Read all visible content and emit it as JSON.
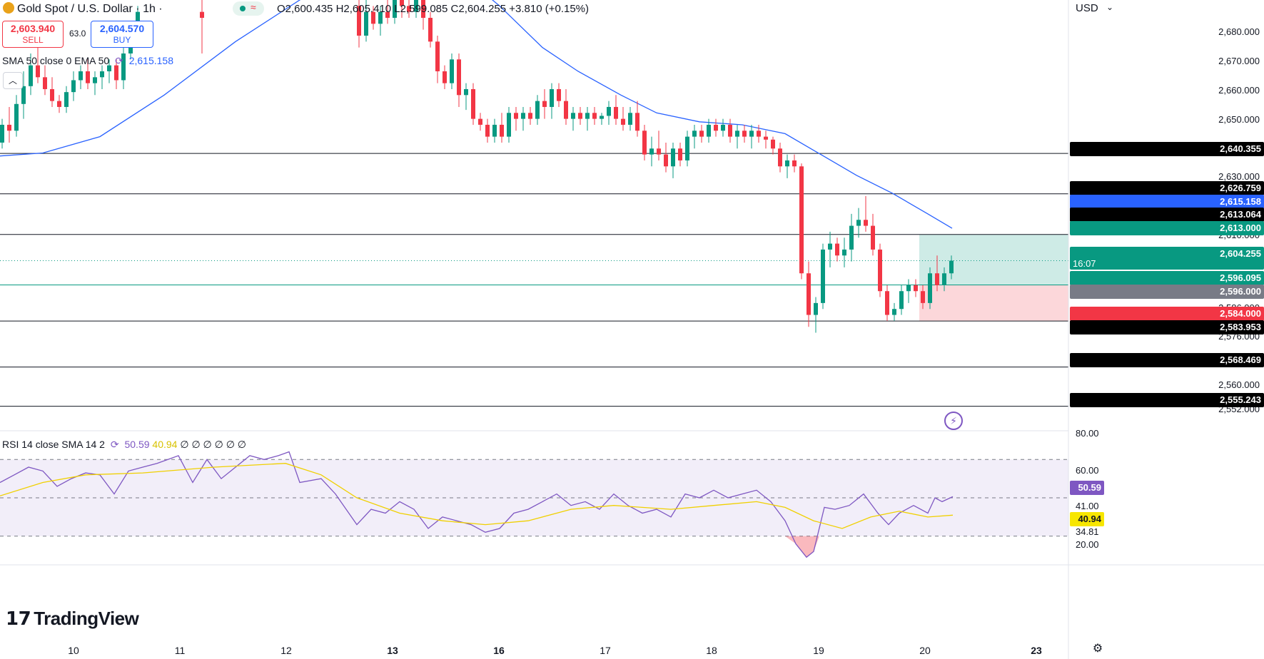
{
  "header": {
    "symbol": "Gold Spot / U.S. Dollar · 1h ·",
    "ohlc": "O2,600.435  H2,605.410  L2,599.085  C2,604.255  +3.810 (+0.15%)"
  },
  "trade": {
    "sell_price": "2,603.940",
    "sell_label": "SELL",
    "spread": "63.0",
    "buy_price": "2,604.570",
    "buy_label": "BUY"
  },
  "indicators": {
    "ma_label": "SMA 50 close 0 EMA 50",
    "ma_value": "2,615.158",
    "rsi_label": "RSI 14 close SMA 14 2",
    "rsi_value": "50.59",
    "rsi_sma_value": "40.94",
    "rsi_extra": "∅ ∅ ∅ ∅ ∅ ∅"
  },
  "axis": {
    "currency": "USD",
    "price_ticks": [
      "2,680.000",
      "2,670.000",
      "2,660.000",
      "2,650.000",
      "2,630.000",
      "2,610.000",
      "2,586.000",
      "2,576.000",
      "2,560.000",
      "2,552.000"
    ],
    "rsi_ticks": [
      "80.00",
      "60.00",
      "41.00",
      "34.81",
      "20.00"
    ],
    "time_ticks": [
      "10",
      "11",
      "12",
      "13",
      "16",
      "17",
      "18",
      "19",
      "20",
      "23"
    ]
  },
  "levels": [
    {
      "label": "2,640.355",
      "color": "#000000"
    },
    {
      "label": "2,626.759",
      "color": "#000000"
    },
    {
      "label": "2,615.158",
      "color": "#2962ff"
    },
    {
      "label": "2,613.064",
      "color": "#000000"
    },
    {
      "label": "2,613.000",
      "color": "#089981"
    },
    {
      "label": "2,604.255",
      "color": "#089981"
    },
    {
      "label": "16:07",
      "color": "#089981"
    },
    {
      "label": "2,596.095",
      "color": "#089981"
    },
    {
      "label": "2,596.000",
      "color": "#787b86"
    },
    {
      "label": "2,584.000",
      "color": "#f23645"
    },
    {
      "label": "2,583.953",
      "color": "#000000"
    },
    {
      "label": "2,568.469",
      "color": "#000000"
    },
    {
      "label": "2,555.243",
      "color": "#000000"
    }
  ],
  "rsi_tags": [
    {
      "label": "50.59",
      "color": "#7e57c2"
    },
    {
      "label": "40.94",
      "color": "#f7e600"
    }
  ],
  "brand": "TradingView",
  "colors": {
    "up": "#089981",
    "down": "#f23645",
    "ma": "#2962ff",
    "rsi": "#7e57c2",
    "rsi_sma": "#f0d000"
  },
  "chart_data": {
    "type": "candlestick",
    "title": "Gold Spot / U.S. Dollar · 1h",
    "ylim": [
      2547,
      2692
    ],
    "horizontal_lines": [
      2640.355,
      2626.759,
      2613.064,
      2596.095,
      2583.953,
      2568.469,
      2555.243
    ],
    "position": {
      "entry": 2596.0,
      "target": 2613.0,
      "stop": 2584.0
    },
    "ma_points": [
      [
        0,
        2639.5
      ],
      [
        60,
        2640.5
      ],
      [
        140,
        2646
      ],
      [
        230,
        2660
      ],
      [
        330,
        2678
      ],
      [
        420,
        2692
      ],
      [
        500,
        2704
      ],
      [
        600,
        2710
      ],
      [
        700,
        2690
      ],
      [
        760,
        2676
      ],
      [
        810,
        2668
      ],
      [
        870,
        2660
      ],
      [
        920,
        2654
      ],
      [
        980,
        2651
      ],
      [
        1040,
        2650
      ],
      [
        1100,
        2647
      ],
      [
        1150,
        2640
      ],
      [
        1200,
        2633
      ],
      [
        1250,
        2627
      ],
      [
        1300,
        2620
      ],
      [
        1334,
        2615.158
      ]
    ],
    "candles": [
      [
        0,
        2644,
        2652,
        2642,
        2650
      ],
      [
        10,
        2650,
        2656,
        2644,
        2648
      ],
      [
        20,
        2648,
        2660,
        2646,
        2657
      ],
      [
        30,
        2657,
        2668,
        2652,
        2663
      ],
      [
        40,
        2663,
        2674,
        2660,
        2670
      ],
      [
        50,
        2670,
        2678,
        2664,
        2666
      ],
      [
        60,
        2666,
        2670,
        2660,
        2662
      ],
      [
        70,
        2662,
        2666,
        2656,
        2658
      ],
      [
        80,
        2658,
        2660,
        2654,
        2656
      ],
      [
        90,
        2656,
        2663,
        2654,
        2661
      ],
      [
        100,
        2661,
        2668,
        2658,
        2665
      ],
      [
        110,
        2665,
        2670,
        2662,
        2668
      ],
      [
        120,
        2668,
        2672,
        2662,
        2664
      ],
      [
        130,
        2664,
        2668,
        2660,
        2666
      ],
      [
        140,
        2666,
        2670,
        2662,
        2668
      ],
      [
        150,
        2668,
        2672,
        2664,
        2670
      ],
      [
        160,
        2670,
        2672,
        2662,
        2665
      ],
      [
        170,
        2665,
        2676,
        2662,
        2674
      ],
      [
        180,
        2674,
        2684,
        2672,
        2682
      ],
      [
        190,
        2682,
        2690,
        2678,
        2688
      ],
      [
        280,
        2688,
        2695,
        2674,
        2686
      ],
      [
        500,
        2690,
        2695,
        2676,
        2680
      ],
      [
        510,
        2680,
        2692,
        2678,
        2688
      ],
      [
        520,
        2688,
        2690,
        2682,
        2684
      ],
      [
        530,
        2684,
        2690,
        2680,
        2688
      ],
      [
        540,
        2688,
        2692,
        2684,
        2686
      ],
      [
        550,
        2686,
        2694,
        2684,
        2692
      ],
      [
        560,
        2692,
        2695,
        2686,
        2690
      ],
      [
        570,
        2690,
        2694,
        2686,
        2688
      ],
      [
        580,
        2688,
        2694,
        2686,
        2692
      ],
      [
        590,
        2692,
        2695,
        2682,
        2686
      ],
      [
        600,
        2686,
        2688,
        2676,
        2678
      ],
      [
        610,
        2678,
        2680,
        2664,
        2668
      ],
      [
        620,
        2668,
        2670,
        2662,
        2664
      ],
      [
        630,
        2664,
        2674,
        2662,
        2672
      ],
      [
        640,
        2672,
        2674,
        2656,
        2660
      ],
      [
        650,
        2660,
        2664,
        2655,
        2662
      ],
      [
        660,
        2662,
        2664,
        2650,
        2652
      ],
      [
        670,
        2652,
        2654,
        2648,
        2650
      ],
      [
        680,
        2650,
        2652,
        2644,
        2646
      ],
      [
        690,
        2646,
        2652,
        2644,
        2650
      ],
      [
        700,
        2650,
        2654,
        2644,
        2646
      ],
      [
        710,
        2646,
        2656,
        2644,
        2654
      ],
      [
        720,
        2654,
        2656,
        2648,
        2652
      ],
      [
        730,
        2652,
        2656,
        2648,
        2654
      ],
      [
        740,
        2654,
        2656,
        2650,
        2652
      ],
      [
        750,
        2652,
        2660,
        2650,
        2658
      ],
      [
        760,
        2658,
        2662,
        2652,
        2656
      ],
      [
        770,
        2656,
        2664,
        2652,
        2662
      ],
      [
        780,
        2662,
        2664,
        2656,
        2658
      ],
      [
        790,
        2658,
        2662,
        2650,
        2652
      ],
      [
        800,
        2652,
        2656,
        2648,
        2654
      ],
      [
        810,
        2654,
        2656,
        2650,
        2652
      ],
      [
        820,
        2652,
        2656,
        2648,
        2654
      ],
      [
        830,
        2654,
        2656,
        2650,
        2652
      ],
      [
        840,
        2652,
        2654,
        2650,
        2653
      ],
      [
        850,
        2653,
        2658,
        2650,
        2656
      ],
      [
        860,
        2656,
        2660,
        2650,
        2652
      ],
      [
        870,
        2652,
        2656,
        2648,
        2650
      ],
      [
        880,
        2650,
        2656,
        2648,
        2654
      ],
      [
        890,
        2654,
        2658,
        2646,
        2648
      ],
      [
        900,
        2648,
        2650,
        2638,
        2640
      ],
      [
        910,
        2640,
        2646,
        2636,
        2642
      ],
      [
        920,
        2642,
        2648,
        2638,
        2640
      ],
      [
        930,
        2640,
        2644,
        2634,
        2636
      ],
      [
        940,
        2636,
        2644,
        2632,
        2642
      ],
      [
        950,
        2642,
        2644,
        2636,
        2638
      ],
      [
        960,
        2638,
        2648,
        2636,
        2646
      ],
      [
        970,
        2646,
        2650,
        2642,
        2648
      ],
      [
        980,
        2648,
        2650,
        2644,
        2646
      ],
      [
        990,
        2646,
        2652,
        2644,
        2650
      ],
      [
        1000,
        2650,
        2652,
        2646,
        2648
      ],
      [
        1010,
        2648,
        2652,
        2646,
        2650
      ],
      [
        1020,
        2650,
        2652,
        2644,
        2646
      ],
      [
        1030,
        2646,
        2650,
        2642,
        2648
      ],
      [
        1040,
        2648,
        2650,
        2644,
        2646
      ],
      [
        1050,
        2646,
        2650,
        2642,
        2648
      ],
      [
        1060,
        2648,
        2650,
        2644,
        2646
      ],
      [
        1070,
        2646,
        2648,
        2642,
        2645
      ],
      [
        1080,
        2645,
        2646,
        2640,
        2642
      ],
      [
        1090,
        2642,
        2644,
        2634,
        2636
      ],
      [
        1100,
        2636,
        2640,
        2632,
        2638
      ],
      [
        1110,
        2638,
        2640,
        2634,
        2636
      ],
      [
        1120,
        2636,
        2637,
        2598,
        2600
      ],
      [
        1130,
        2600,
        2604,
        2582,
        2586
      ],
      [
        1140,
        2586,
        2592,
        2580,
        2590
      ],
      [
        1150,
        2590,
        2610,
        2588,
        2608
      ],
      [
        1160,
        2608,
        2614,
        2602,
        2610
      ],
      [
        1170,
        2610,
        2612,
        2604,
        2606
      ],
      [
        1180,
        2606,
        2612,
        2602,
        2608
      ],
      [
        1190,
        2608,
        2620,
        2604,
        2616
      ],
      [
        1200,
        2616,
        2622,
        2612,
        2618
      ],
      [
        1210,
        2618,
        2626,
        2614,
        2616
      ],
      [
        1220,
        2616,
        2620,
        2606,
        2608
      ],
      [
        1230,
        2608,
        2610,
        2592,
        2594
      ],
      [
        1240,
        2594,
        2596,
        2584,
        2586
      ],
      [
        1250,
        2586,
        2590,
        2584,
        2588
      ],
      [
        1260,
        2588,
        2596,
        2586,
        2594
      ],
      [
        1270,
        2594,
        2598,
        2590,
        2596
      ],
      [
        1280,
        2596,
        2598,
        2592,
        2594
      ],
      [
        1290,
        2594,
        2596,
        2588,
        2590
      ],
      [
        1300,
        2590,
        2602,
        2588,
        2600
      ],
      [
        1310,
        2600,
        2606,
        2594,
        2596
      ],
      [
        1320,
        2596,
        2602,
        2594,
        2600
      ],
      [
        1330,
        2600,
        2606,
        2598,
        2604.255
      ]
    ],
    "rsi_ylim": [
      15,
      85
    ],
    "rsi_band": [
      30,
      70
    ],
    "rsi_points": [
      [
        0,
        58
      ],
      [
        20,
        62
      ],
      [
        40,
        66
      ],
      [
        60,
        64
      ],
      [
        80,
        56
      ],
      [
        100,
        60
      ],
      [
        120,
        63
      ],
      [
        140,
        62
      ],
      [
        160,
        52
      ],
      [
        180,
        64
      ],
      [
        200,
        66
      ],
      [
        220,
        68
      ],
      [
        250,
        72
      ],
      [
        270,
        58
      ],
      [
        290,
        70
      ],
      [
        310,
        60
      ],
      [
        330,
        66
      ],
      [
        350,
        72
      ],
      [
        370,
        70
      ],
      [
        390,
        72
      ],
      [
        405,
        74
      ],
      [
        420,
        58
      ],
      [
        450,
        60
      ],
      [
        470,
        52
      ],
      [
        500,
        36
      ],
      [
        520,
        44
      ],
      [
        540,
        42
      ],
      [
        560,
        48
      ],
      [
        580,
        44
      ],
      [
        600,
        34
      ],
      [
        620,
        40
      ],
      [
        640,
        38
      ],
      [
        660,
        36
      ],
      [
        680,
        32
      ],
      [
        700,
        34
      ],
      [
        720,
        42
      ],
      [
        740,
        44
      ],
      [
        760,
        48
      ],
      [
        780,
        52
      ],
      [
        800,
        46
      ],
      [
        820,
        48
      ],
      [
        840,
        44
      ],
      [
        860,
        52
      ],
      [
        880,
        46
      ],
      [
        900,
        42
      ],
      [
        920,
        44
      ],
      [
        940,
        40
      ],
      [
        960,
        52
      ],
      [
        980,
        50
      ],
      [
        1000,
        54
      ],
      [
        1020,
        50
      ],
      [
        1040,
        52
      ],
      [
        1060,
        54
      ],
      [
        1080,
        48
      ],
      [
        1100,
        38
      ],
      [
        1115,
        26
      ],
      [
        1130,
        19
      ],
      [
        1140,
        22
      ],
      [
        1155,
        45
      ],
      [
        1170,
        44
      ],
      [
        1190,
        46
      ],
      [
        1210,
        52
      ],
      [
        1230,
        42
      ],
      [
        1245,
        36
      ],
      [
        1260,
        42
      ],
      [
        1280,
        46
      ],
      [
        1300,
        42
      ],
      [
        1310,
        50
      ],
      [
        1320,
        48
      ],
      [
        1335,
        50.59
      ]
    ],
    "rsi_sma_points": [
      [
        0,
        51
      ],
      [
        60,
        58
      ],
      [
        120,
        62
      ],
      [
        200,
        63
      ],
      [
        300,
        66
      ],
      [
        400,
        68
      ],
      [
        450,
        62
      ],
      [
        500,
        50
      ],
      [
        560,
        42
      ],
      [
        620,
        38
      ],
      [
        680,
        36
      ],
      [
        740,
        38
      ],
      [
        800,
        44
      ],
      [
        860,
        46
      ],
      [
        940,
        44
      ],
      [
        1000,
        46
      ],
      [
        1060,
        48
      ],
      [
        1100,
        45
      ],
      [
        1140,
        38
      ],
      [
        1180,
        34
      ],
      [
        1220,
        40
      ],
      [
        1260,
        43
      ],
      [
        1300,
        40
      ],
      [
        1335,
        40.94
      ]
    ]
  }
}
